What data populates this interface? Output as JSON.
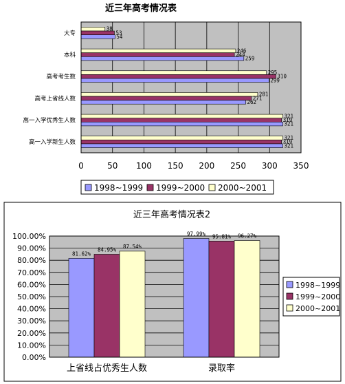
{
  "colors": {
    "s1": "#9999FF",
    "s2": "#993366",
    "s3": "#FFFFCC",
    "plot_bg": "#C0C0C0",
    "border": "#000000"
  },
  "chart_data": [
    {
      "type": "bar",
      "orientation": "horizontal",
      "title": "近三年高考情况表",
      "categories": [
        "大专",
        "本科",
        "高考考生数",
        "高考上省线人数",
        "高一入学优秀生人数",
        "高一入学新生人数"
      ],
      "series": [
        {
          "name": "1998~1999",
          "values": [
            54,
            259,
            299,
            262,
            321,
            321
          ],
          "labels": [
            "54",
            "259",
            "299",
            "262",
            "321",
            "321"
          ]
        },
        {
          "name": "1999~2000",
          "values": [
            53,
            244,
            310,
            271,
            319,
            319
          ],
          "labels": [
            "53",
            "244",
            "310",
            "271",
            "319",
            "319"
          ]
        },
        {
          "name": "2000~2001",
          "values": [
            38,
            246,
            295,
            281,
            321,
            321
          ],
          "labels": [
            "38",
            "246",
            "295",
            "281",
            "321",
            "321"
          ]
        }
      ],
      "xlim": [
        0,
        350
      ],
      "xticks": [
        "0",
        "50",
        "100",
        "150",
        "200",
        "250",
        "300",
        "350"
      ],
      "grid": true,
      "legend": "bottom"
    },
    {
      "type": "bar",
      "title": "近三年高考情况表2",
      "categories": [
        "上省线占优秀生人数",
        "录取率"
      ],
      "series": [
        {
          "name": "1998~1999",
          "values": [
            81.62,
            97.99
          ],
          "labels": [
            "81.62%",
            "97.99%"
          ]
        },
        {
          "name": "1999~2000",
          "values": [
            84.95,
            95.81
          ],
          "labels": [
            "84.95%",
            "95.81%"
          ]
        },
        {
          "name": "2000~2001",
          "values": [
            87.54,
            96.27
          ],
          "labels": [
            "87.54%",
            "96.27%"
          ]
        }
      ],
      "ylim": [
        0,
        100
      ],
      "yticks": [
        "0.00%",
        "10.00%",
        "20.00%",
        "30.00%",
        "40.00%",
        "50.00%",
        "60.00%",
        "70.00%",
        "80.00%",
        "90.00%",
        "100.00%"
      ],
      "grid": true,
      "legend": "right"
    }
  ]
}
